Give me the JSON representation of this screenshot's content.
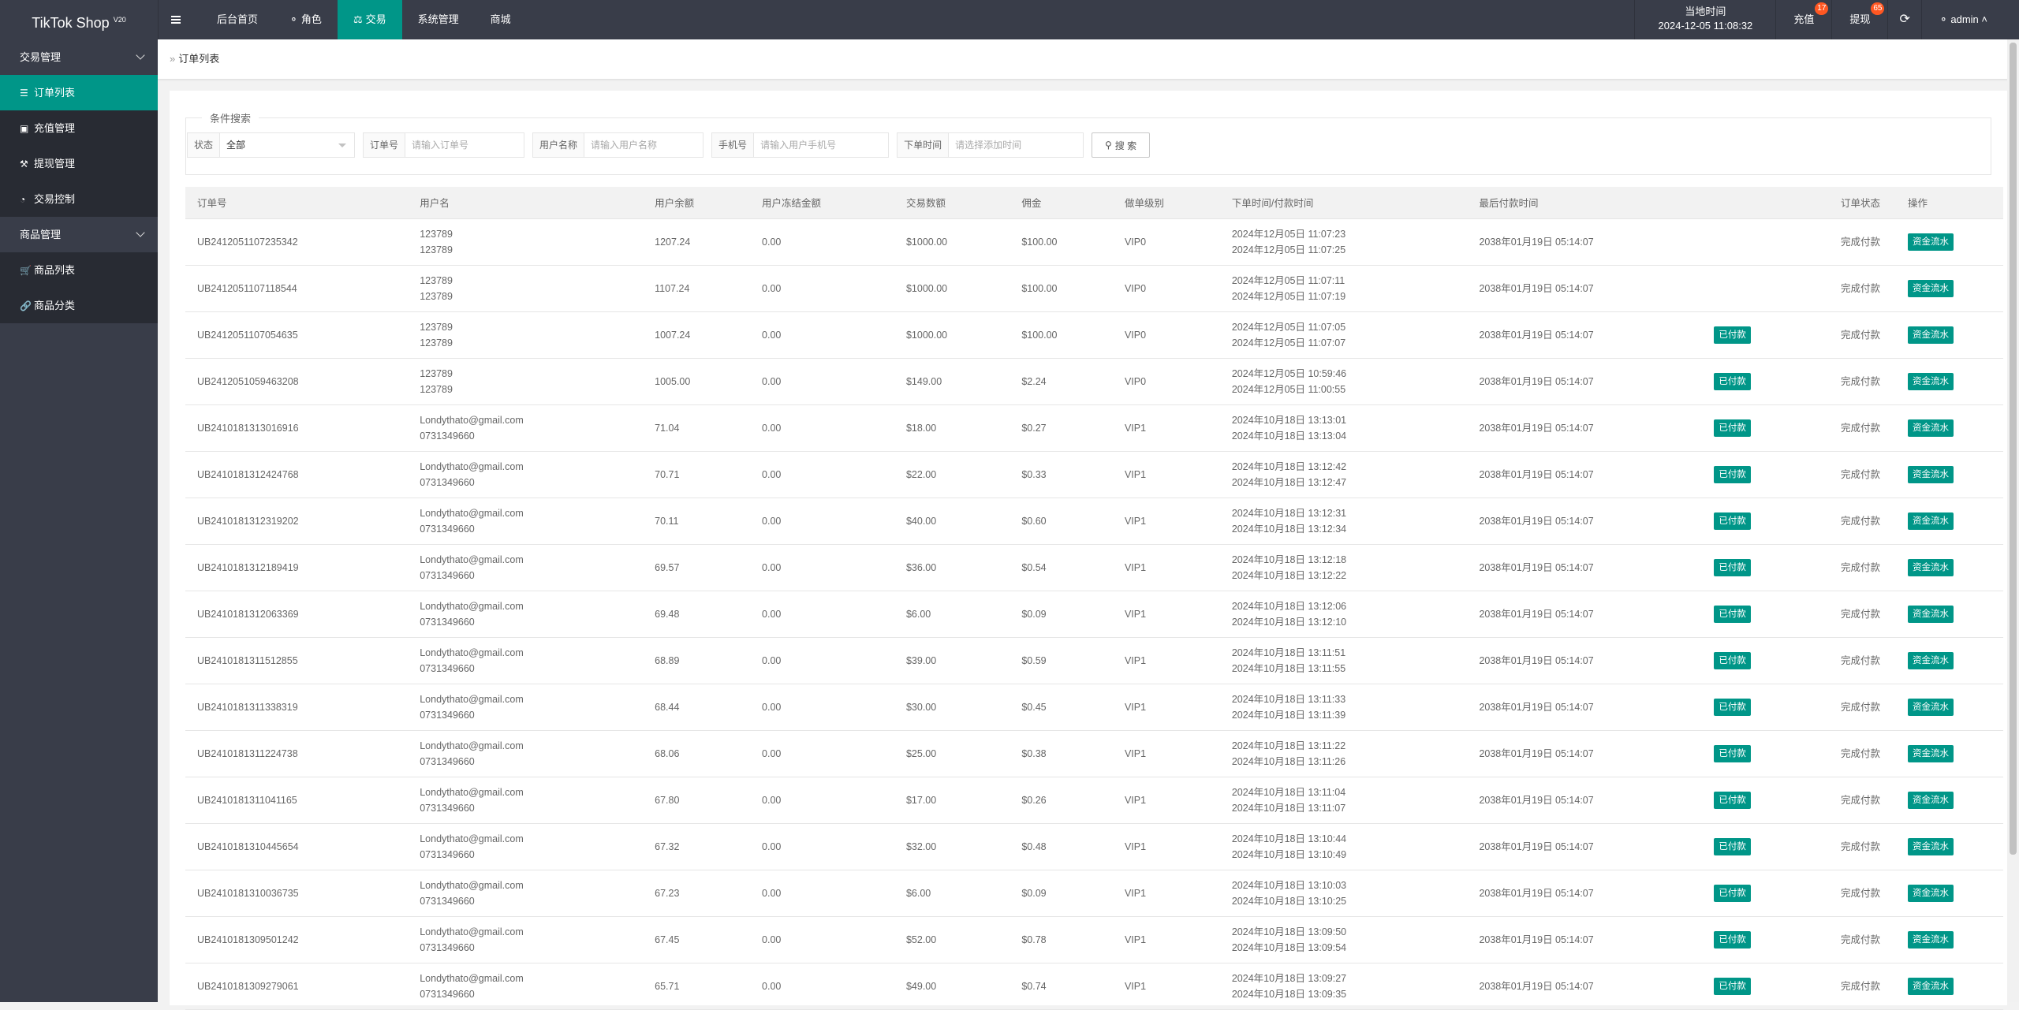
{
  "header": {
    "logo": "TikTok Shop",
    "version": "V20",
    "nav": [
      {
        "label": "后台首页",
        "icon": ""
      },
      {
        "label": "角色",
        "icon": "user-icon"
      },
      {
        "label": "交易",
        "icon": "scale-icon",
        "active": true
      },
      {
        "label": "系统管理",
        "icon": ""
      },
      {
        "label": "商城",
        "icon": ""
      }
    ],
    "clock_label": "当地时间",
    "clock_value": "2024-12-05 11:08:32",
    "recharge": "充值",
    "recharge_count": "17",
    "withdraw": "提现",
    "withdraw_count": "65",
    "user": "admin"
  },
  "sidebar": {
    "groups": [
      {
        "label": "交易管理",
        "items": [
          {
            "label": "订单列表",
            "icon": "list-icon",
            "active": true
          },
          {
            "label": "充值管理",
            "icon": "monitor-icon"
          },
          {
            "label": "提现管理",
            "icon": "gavel-icon"
          },
          {
            "label": "交易控制",
            "icon": "dashboard-icon"
          }
        ]
      },
      {
        "label": "商品管理",
        "items": [
          {
            "label": "商品列表",
            "icon": "cart-icon"
          },
          {
            "label": "商品分类",
            "icon": "link-icon"
          }
        ]
      }
    ]
  },
  "breadcrumb": "订单列表",
  "search": {
    "legend": "条件搜索",
    "status_label": "状态",
    "status_value": "全部",
    "order_label": "订单号",
    "order_placeholder": "请输入订单号",
    "username_label": "用户名称",
    "username_placeholder": "请输入用户名称",
    "phone_label": "手机号",
    "phone_placeholder": "请输入用户手机号",
    "time_label": "下单时间",
    "time_placeholder": "请选择添加时间",
    "button": "搜 索"
  },
  "table": {
    "columns": [
      "订单号",
      "用户名",
      "用户余额",
      "用户冻结金额",
      "交易数额",
      "佣金",
      "做单级别",
      "下单时间/付款时间",
      "最后付款时间",
      "",
      "订单状态",
      "操作"
    ],
    "paid_label": "已付款",
    "flow_label": "资金流水",
    "rows": [
      {
        "id": "UB2412051107235342",
        "u1": "123789",
        "u2": "123789",
        "bal": "1207.24",
        "frz": "0.00",
        "amt": "$1000.00",
        "com": "$100.00",
        "lvl": "VIP0",
        "t1": "2024年12月05日 11:07:23",
        "t2": "2024年12月05日 11:07:25",
        "last": "2038年01月19日 05:14:07",
        "paid": false,
        "status": "完成付款"
      },
      {
        "id": "UB2412051107118544",
        "u1": "123789",
        "u2": "123789",
        "bal": "1107.24",
        "frz": "0.00",
        "amt": "$1000.00",
        "com": "$100.00",
        "lvl": "VIP0",
        "t1": "2024年12月05日 11:07:11",
        "t2": "2024年12月05日 11:07:19",
        "last": "2038年01月19日 05:14:07",
        "paid": false,
        "status": "完成付款"
      },
      {
        "id": "UB2412051107054635",
        "u1": "123789",
        "u2": "123789",
        "bal": "1007.24",
        "frz": "0.00",
        "amt": "$1000.00",
        "com": "$100.00",
        "lvl": "VIP0",
        "t1": "2024年12月05日 11:07:05",
        "t2": "2024年12月05日 11:07:07",
        "last": "2038年01月19日 05:14:07",
        "paid": true,
        "status": "完成付款"
      },
      {
        "id": "UB2412051059463208",
        "u1": "123789",
        "u2": "123789",
        "bal": "1005.00",
        "frz": "0.00",
        "amt": "$149.00",
        "com": "$2.24",
        "lvl": "VIP0",
        "t1": "2024年12月05日 10:59:46",
        "t2": "2024年12月05日 11:00:55",
        "last": "2038年01月19日 05:14:07",
        "paid": true,
        "status": "完成付款"
      },
      {
        "id": "UB2410181313016916",
        "u1": "Londythato@gmail.com",
        "u2": "0731349660",
        "bal": "71.04",
        "frz": "0.00",
        "amt": "$18.00",
        "com": "$0.27",
        "lvl": "VIP1",
        "t1": "2024年10月18日 13:13:01",
        "t2": "2024年10月18日 13:13:04",
        "last": "2038年01月19日 05:14:07",
        "paid": true,
        "status": "完成付款"
      },
      {
        "id": "UB2410181312424768",
        "u1": "Londythato@gmail.com",
        "u2": "0731349660",
        "bal": "70.71",
        "frz": "0.00",
        "amt": "$22.00",
        "com": "$0.33",
        "lvl": "VIP1",
        "t1": "2024年10月18日 13:12:42",
        "t2": "2024年10月18日 13:12:47",
        "last": "2038年01月19日 05:14:07",
        "paid": true,
        "status": "完成付款"
      },
      {
        "id": "UB2410181312319202",
        "u1": "Londythato@gmail.com",
        "u2": "0731349660",
        "bal": "70.11",
        "frz": "0.00",
        "amt": "$40.00",
        "com": "$0.60",
        "lvl": "VIP1",
        "t1": "2024年10月18日 13:12:31",
        "t2": "2024年10月18日 13:12:34",
        "last": "2038年01月19日 05:14:07",
        "paid": true,
        "status": "完成付款"
      },
      {
        "id": "UB2410181312189419",
        "u1": "Londythato@gmail.com",
        "u2": "0731349660",
        "bal": "69.57",
        "frz": "0.00",
        "amt": "$36.00",
        "com": "$0.54",
        "lvl": "VIP1",
        "t1": "2024年10月18日 13:12:18",
        "t2": "2024年10月18日 13:12:22",
        "last": "2038年01月19日 05:14:07",
        "paid": true,
        "status": "完成付款"
      },
      {
        "id": "UB2410181312063369",
        "u1": "Londythato@gmail.com",
        "u2": "0731349660",
        "bal": "69.48",
        "frz": "0.00",
        "amt": "$6.00",
        "com": "$0.09",
        "lvl": "VIP1",
        "t1": "2024年10月18日 13:12:06",
        "t2": "2024年10月18日 13:12:10",
        "last": "2038年01月19日 05:14:07",
        "paid": true,
        "status": "完成付款"
      },
      {
        "id": "UB2410181311512855",
        "u1": "Londythato@gmail.com",
        "u2": "0731349660",
        "bal": "68.89",
        "frz": "0.00",
        "amt": "$39.00",
        "com": "$0.59",
        "lvl": "VIP1",
        "t1": "2024年10月18日 13:11:51",
        "t2": "2024年10月18日 13:11:55",
        "last": "2038年01月19日 05:14:07",
        "paid": true,
        "status": "完成付款"
      },
      {
        "id": "UB2410181311338319",
        "u1": "Londythato@gmail.com",
        "u2": "0731349660",
        "bal": "68.44",
        "frz": "0.00",
        "amt": "$30.00",
        "com": "$0.45",
        "lvl": "VIP1",
        "t1": "2024年10月18日 13:11:33",
        "t2": "2024年10月18日 13:11:39",
        "last": "2038年01月19日 05:14:07",
        "paid": true,
        "status": "完成付款"
      },
      {
        "id": "UB2410181311224738",
        "u1": "Londythato@gmail.com",
        "u2": "0731349660",
        "bal": "68.06",
        "frz": "0.00",
        "amt": "$25.00",
        "com": "$0.38",
        "lvl": "VIP1",
        "t1": "2024年10月18日 13:11:22",
        "t2": "2024年10月18日 13:11:26",
        "last": "2038年01月19日 05:14:07",
        "paid": true,
        "status": "完成付款"
      },
      {
        "id": "UB2410181311041165",
        "u1": "Londythato@gmail.com",
        "u2": "0731349660",
        "bal": "67.80",
        "frz": "0.00",
        "amt": "$17.00",
        "com": "$0.26",
        "lvl": "VIP1",
        "t1": "2024年10月18日 13:11:04",
        "t2": "2024年10月18日 13:11:07",
        "last": "2038年01月19日 05:14:07",
        "paid": true,
        "status": "完成付款"
      },
      {
        "id": "UB2410181310445654",
        "u1": "Londythato@gmail.com",
        "u2": "0731349660",
        "bal": "67.32",
        "frz": "0.00",
        "amt": "$32.00",
        "com": "$0.48",
        "lvl": "VIP1",
        "t1": "2024年10月18日 13:10:44",
        "t2": "2024年10月18日 13:10:49",
        "last": "2038年01月19日 05:14:07",
        "paid": true,
        "status": "完成付款"
      },
      {
        "id": "UB2410181310036735",
        "u1": "Londythato@gmail.com",
        "u2": "0731349660",
        "bal": "67.23",
        "frz": "0.00",
        "amt": "$6.00",
        "com": "$0.09",
        "lvl": "VIP1",
        "t1": "2024年10月18日 13:10:03",
        "t2": "2024年10月18日 13:10:25",
        "last": "2038年01月19日 05:14:07",
        "paid": true,
        "status": "完成付款"
      },
      {
        "id": "UB2410181309501242",
        "u1": "Londythato@gmail.com",
        "u2": "0731349660",
        "bal": "67.45",
        "frz": "0.00",
        "amt": "$52.00",
        "com": "$0.78",
        "lvl": "VIP1",
        "t1": "2024年10月18日 13:09:50",
        "t2": "2024年10月18日 13:09:54",
        "last": "2038年01月19日 05:14:07",
        "paid": true,
        "status": "完成付款"
      },
      {
        "id": "UB2410181309279061",
        "u1": "Londythato@gmail.com",
        "u2": "0731349660",
        "bal": "65.71",
        "frz": "0.00",
        "amt": "$49.00",
        "com": "$0.74",
        "lvl": "VIP1",
        "t1": "2024年10月18日 13:09:27",
        "t2": "2024年10月18日 13:09:35",
        "last": "2038年01月19日 05:14:07",
        "paid": true,
        "status": "完成付款"
      }
    ]
  },
  "colors": {
    "accent": "#009688",
    "topbar": "#393d49",
    "badge": "#ff5722"
  }
}
